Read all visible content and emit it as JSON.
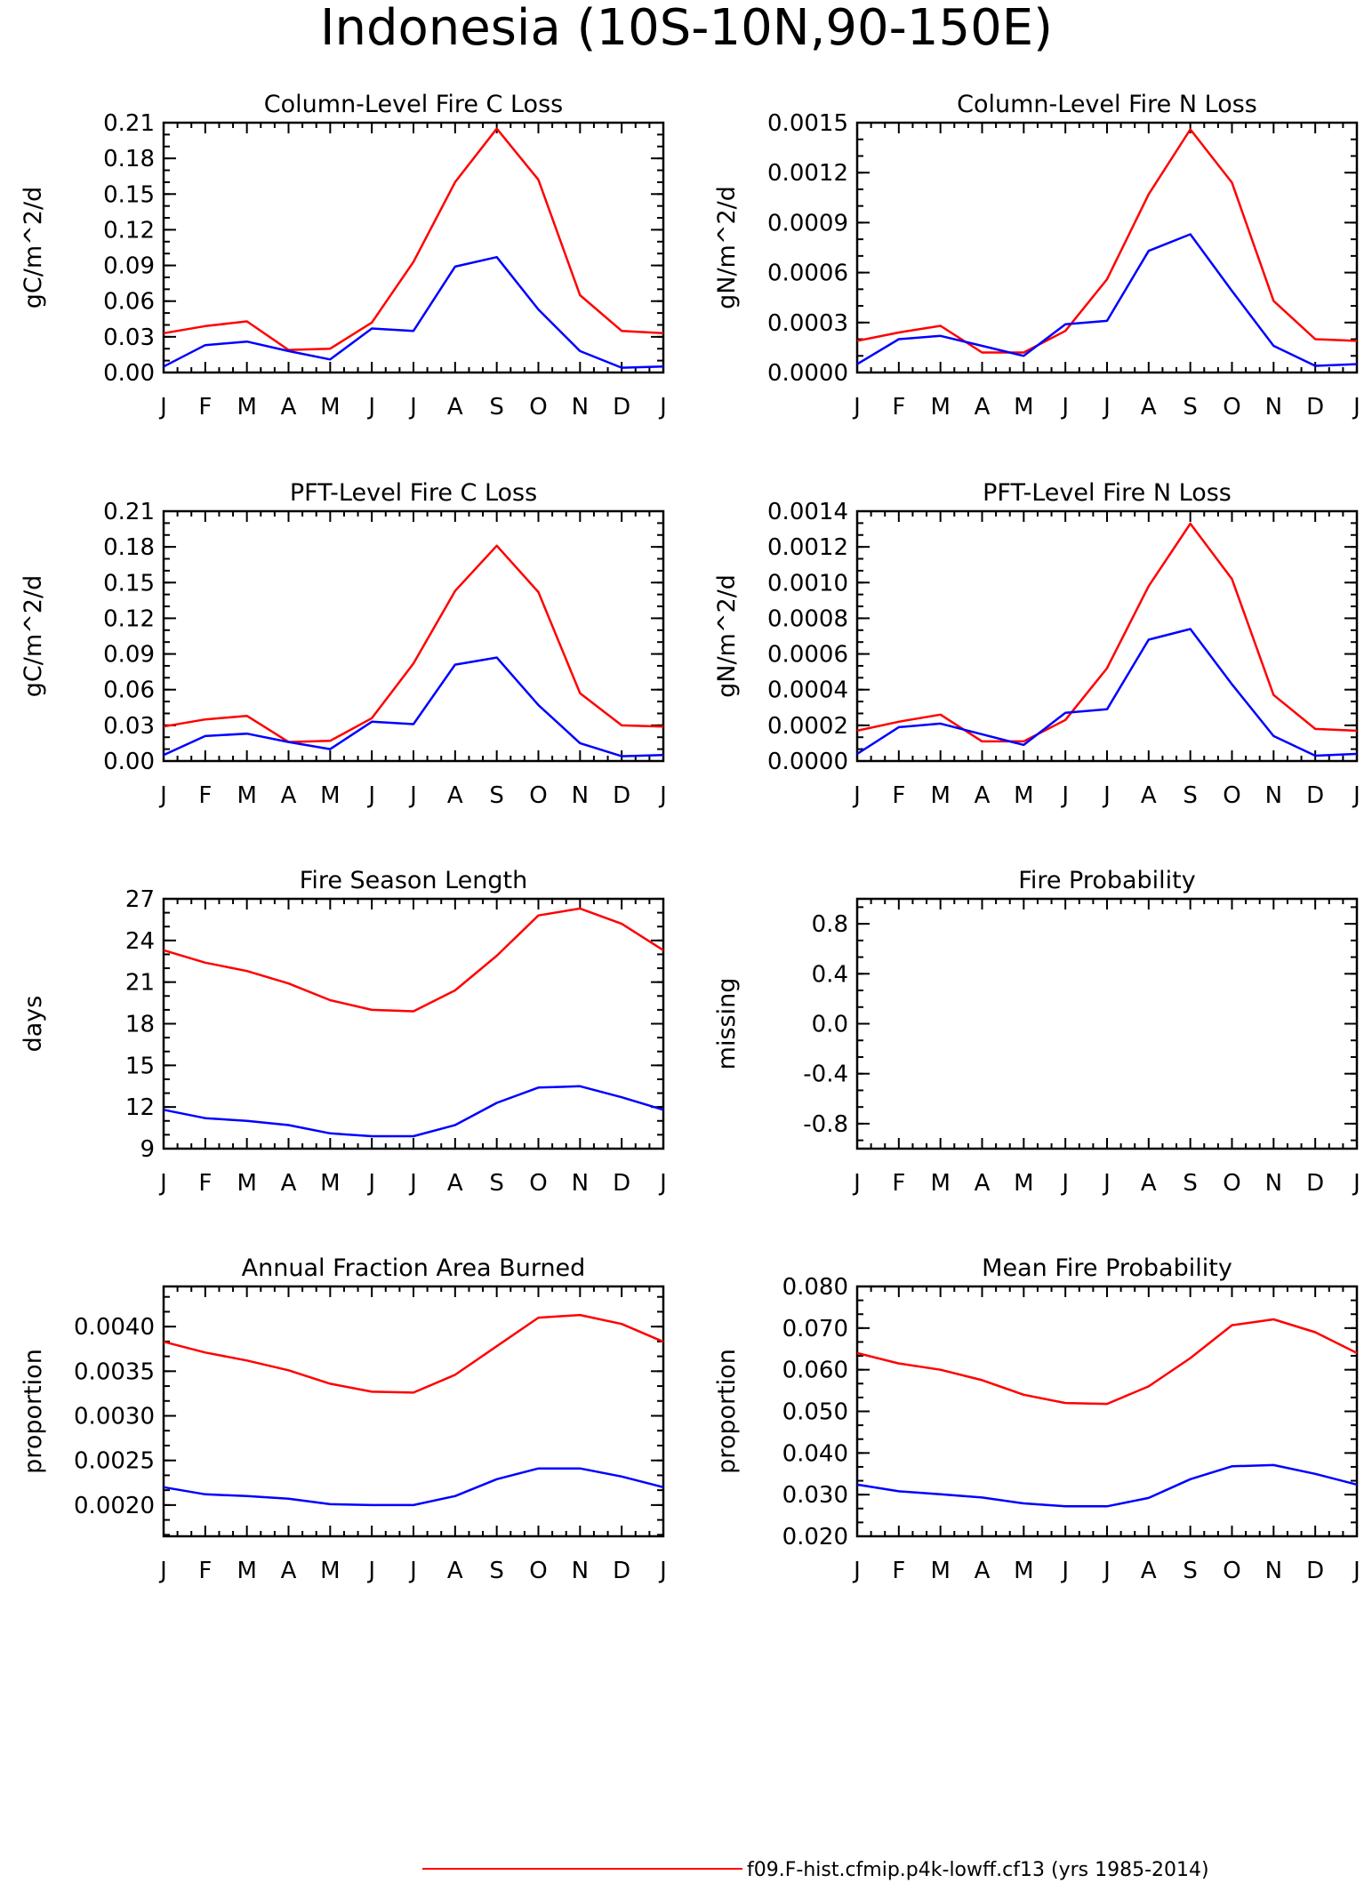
{
  "figure": {
    "title": "Indonesia (10S-10N,90-150E)",
    "legend": [
      {
        "label": "f09.F-hist.cfmip.p4k-lowff.cf13 (yrs 1985-2014)",
        "color": "#ff0000"
      }
    ]
  },
  "chart_data": [
    {
      "type": "line",
      "title": "Column-Level Fire C Loss",
      "ylabel": "gC/m^2/d",
      "categories": [
        "J",
        "F",
        "M",
        "A",
        "M",
        "J",
        "J",
        "A",
        "S",
        "O",
        "N",
        "D",
        "J"
      ],
      "ylim": [
        0,
        0.21
      ],
      "yticks": [
        "0.00",
        "0.03",
        "0.06",
        "0.09",
        "0.12",
        "0.15",
        "0.18",
        "0.21"
      ],
      "series": [
        {
          "color": "#ff0000",
          "values": [
            0.033,
            0.039,
            0.043,
            0.019,
            0.02,
            0.042,
            0.093,
            0.16,
            0.205,
            0.162,
            0.065,
            0.035,
            0.033
          ]
        },
        {
          "color": "#0000ff",
          "values": [
            0.005,
            0.023,
            0.026,
            0.018,
            0.011,
            0.037,
            0.035,
            0.089,
            0.097,
            0.053,
            0.018,
            0.004,
            0.005
          ]
        }
      ]
    },
    {
      "type": "line",
      "title": "Column-Level Fire N Loss",
      "ylabel": "gN/m^2/d",
      "categories": [
        "J",
        "F",
        "M",
        "A",
        "M",
        "J",
        "J",
        "A",
        "S",
        "O",
        "N",
        "D",
        "J"
      ],
      "ylim": [
        0,
        0.0015
      ],
      "yticks": [
        "0.0000",
        "0.0003",
        "0.0006",
        "0.0009",
        "0.0012",
        "0.0015"
      ],
      "series": [
        {
          "color": "#ff0000",
          "values": [
            0.00019,
            0.00024,
            0.00028,
            0.00012,
            0.00012,
            0.00025,
            0.00056,
            0.00107,
            0.00146,
            0.00114,
            0.00043,
            0.0002,
            0.00019
          ]
        },
        {
          "color": "#0000ff",
          "values": [
            5e-05,
            0.0002,
            0.00022,
            0.00016,
            0.0001,
            0.00029,
            0.00031,
            0.00073,
            0.00083,
            0.00049,
            0.00016,
            4e-05,
            5e-05
          ]
        }
      ]
    },
    {
      "type": "line",
      "title": "PFT-Level Fire C Loss",
      "ylabel": "gC/m^2/d",
      "categories": [
        "J",
        "F",
        "M",
        "A",
        "M",
        "J",
        "J",
        "A",
        "S",
        "O",
        "N",
        "D",
        "J"
      ],
      "ylim": [
        0,
        0.21
      ],
      "yticks": [
        "0.00",
        "0.03",
        "0.06",
        "0.09",
        "0.12",
        "0.15",
        "0.18",
        "0.21"
      ],
      "series": [
        {
          "color": "#ff0000",
          "values": [
            0.029,
            0.035,
            0.038,
            0.016,
            0.017,
            0.036,
            0.082,
            0.143,
            0.181,
            0.142,
            0.057,
            0.03,
            0.029
          ]
        },
        {
          "color": "#0000ff",
          "values": [
            0.005,
            0.021,
            0.023,
            0.016,
            0.01,
            0.033,
            0.031,
            0.081,
            0.087,
            0.047,
            0.015,
            0.004,
            0.005
          ]
        }
      ]
    },
    {
      "type": "line",
      "title": "PFT-Level Fire N Loss",
      "ylabel": "gN/m^2/d",
      "categories": [
        "J",
        "F",
        "M",
        "A",
        "M",
        "J",
        "J",
        "A",
        "S",
        "O",
        "N",
        "D",
        "J"
      ],
      "ylim": [
        0,
        0.0014
      ],
      "yticks": [
        "0.0000",
        "0.0002",
        "0.0004",
        "0.0006",
        "0.0008",
        "0.0010",
        "0.0012",
        "0.0014"
      ],
      "series": [
        {
          "color": "#ff0000",
          "values": [
            0.00017,
            0.00022,
            0.00026,
            0.00011,
            0.00011,
            0.00023,
            0.00052,
            0.00098,
            0.00133,
            0.00102,
            0.00037,
            0.00018,
            0.00017
          ]
        },
        {
          "color": "#0000ff",
          "values": [
            4e-05,
            0.00019,
            0.00021,
            0.00015,
            9e-05,
            0.00027,
            0.00029,
            0.00068,
            0.00074,
            0.00043,
            0.00014,
            3e-05,
            4e-05
          ]
        }
      ]
    },
    {
      "type": "line",
      "title": "Fire Season Length",
      "ylabel": "days",
      "categories": [
        "J",
        "F",
        "M",
        "A",
        "M",
        "J",
        "J",
        "A",
        "S",
        "O",
        "N",
        "D",
        "J"
      ],
      "ylim": [
        9,
        27
      ],
      "yticks": [
        "9",
        "12",
        "15",
        "18",
        "21",
        "24",
        "27"
      ],
      "series": [
        {
          "color": "#ff0000",
          "values": [
            23.3,
            22.4,
            21.8,
            20.9,
            19.7,
            19.0,
            18.9,
            20.4,
            22.9,
            25.8,
            26.3,
            25.2,
            23.3
          ]
        },
        {
          "color": "#0000ff",
          "values": [
            11.8,
            11.2,
            11.0,
            10.7,
            10.1,
            9.9,
            9.9,
            10.7,
            12.3,
            13.4,
            13.5,
            12.7,
            11.8
          ]
        }
      ]
    },
    {
      "type": "line",
      "title": "Fire Probability",
      "ylabel": "missing",
      "categories": [
        "J",
        "F",
        "M",
        "A",
        "M",
        "J",
        "J",
        "A",
        "S",
        "O",
        "N",
        "D",
        "J"
      ],
      "ylim": [
        -1,
        1
      ],
      "yticks": [
        "-0.8",
        "-0.4",
        "0.0",
        "0.4",
        "0.8"
      ],
      "series": []
    },
    {
      "type": "line",
      "title": "Annual Fraction Area Burned",
      "ylabel": "proportion",
      "categories": [
        "J",
        "F",
        "M",
        "A",
        "M",
        "J",
        "J",
        "A",
        "S",
        "O",
        "N",
        "D",
        "J"
      ],
      "ylim": [
        0.00165,
        0.00445
      ],
      "yticks": [
        "0.0020",
        "0.0025",
        "0.0030",
        "0.0035",
        "0.0040"
      ],
      "series": [
        {
          "color": "#ff0000",
          "values": [
            0.00383,
            0.00371,
            0.00362,
            0.00351,
            0.00336,
            0.00327,
            0.00326,
            0.00346,
            0.00378,
            0.0041,
            0.00413,
            0.00403,
            0.00383
          ]
        },
        {
          "color": "#0000ff",
          "values": [
            0.0022,
            0.00212,
            0.0021,
            0.00207,
            0.00201,
            0.002,
            0.002,
            0.0021,
            0.00229,
            0.00241,
            0.00241,
            0.00232,
            0.0022
          ]
        }
      ]
    },
    {
      "type": "line",
      "title": "Mean Fire Probability",
      "ylabel": "proportion",
      "categories": [
        "J",
        "F",
        "M",
        "A",
        "M",
        "J",
        "J",
        "A",
        "S",
        "O",
        "N",
        "D",
        "J"
      ],
      "ylim": [
        0.02,
        0.08
      ],
      "yticks": [
        "0.020",
        "0.030",
        "0.040",
        "0.050",
        "0.060",
        "0.070",
        "0.080"
      ],
      "series": [
        {
          "color": "#ff0000",
          "values": [
            0.064,
            0.0615,
            0.06,
            0.0575,
            0.054,
            0.052,
            0.0518,
            0.056,
            0.0628,
            0.0707,
            0.0721,
            0.069,
            0.064
          ]
        },
        {
          "color": "#0000ff",
          "values": [
            0.0324,
            0.0308,
            0.0301,
            0.0293,
            0.0279,
            0.0272,
            0.0272,
            0.0292,
            0.0337,
            0.0368,
            0.0371,
            0.035,
            0.0324
          ]
        }
      ]
    }
  ]
}
